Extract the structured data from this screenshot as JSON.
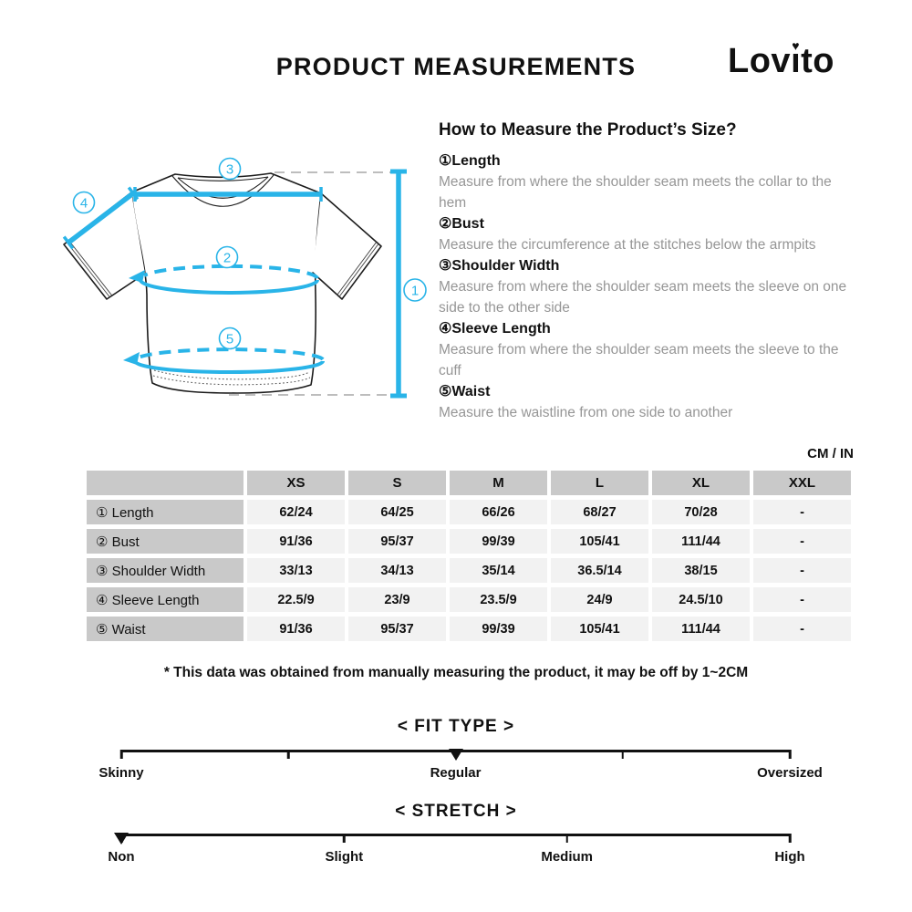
{
  "colors": {
    "accent": "#29b4e8",
    "outline": "#1c1c1c",
    "table_header_bg": "#c9c9c9",
    "table_cell_bg": "#f2f2f2",
    "muted_text": "#969696",
    "dashed_gray": "#bdbdbd"
  },
  "header": {
    "title": "PRODUCT MEASUREMENTS",
    "brand": "Lovito"
  },
  "diagram": {
    "labels": [
      "1",
      "2",
      "3",
      "4",
      "5"
    ]
  },
  "howto": {
    "title": "How to Measure the Product’s Size?",
    "items": [
      {
        "label": "①Length",
        "desc": "Measure from where the shoulder seam meets the collar to the hem"
      },
      {
        "label": "②Bust",
        "desc": "Measure the circumference at the stitches below the armpits"
      },
      {
        "label": "③Shoulder Width",
        "desc": "Measure from where the shoulder seam meets the sleeve on one side to the other side"
      },
      {
        "label": "④Sleeve Length",
        "desc": "Measure from where the shoulder seam meets the sleeve to the cuff"
      },
      {
        "label": "⑤Waist",
        "desc": "Measure the waistline from one side to another"
      }
    ]
  },
  "table": {
    "unit_label": "CM / IN",
    "columns": [
      "XS",
      "S",
      "M",
      "L",
      "XL",
      "XXL"
    ],
    "rows": [
      {
        "label": "① Length",
        "values": [
          "62/24",
          "64/25",
          "66/26",
          "68/27",
          "70/28",
          "-"
        ]
      },
      {
        "label": "② Bust",
        "values": [
          "91/36",
          "95/37",
          "99/39",
          "105/41",
          "111/44",
          "-"
        ]
      },
      {
        "label": "③ Shoulder Width",
        "values": [
          "33/13",
          "34/13",
          "35/14",
          "36.5/14",
          "38/15",
          "-"
        ]
      },
      {
        "label": "④ Sleeve Length",
        "values": [
          "22.5/9",
          "23/9",
          "23.5/9",
          "24/9",
          "24.5/10",
          "-"
        ]
      },
      {
        "label": "⑤ Waist",
        "values": [
          "91/36",
          "95/37",
          "99/39",
          "105/41",
          "111/44",
          "-"
        ]
      }
    ]
  },
  "disclaimer": "* This data was obtained from manually measuring the product, it may be off by 1~2CM",
  "sliders": {
    "fit_type": {
      "title": "< FIT TYPE >",
      "labels": [
        "Skinny",
        "Regular",
        "Oversized"
      ],
      "selected": "Regular",
      "marker_position_pct": 50,
      "tick_positions_pct": [
        0,
        25,
        75,
        100
      ]
    },
    "stretch": {
      "title": "< STRETCH >",
      "labels": [
        "Non",
        "Slight",
        "Medium",
        "High"
      ],
      "selected": "Non",
      "marker_position_pct": 0,
      "tick_positions_pct": [
        0,
        33.33,
        66.67,
        100
      ]
    }
  }
}
